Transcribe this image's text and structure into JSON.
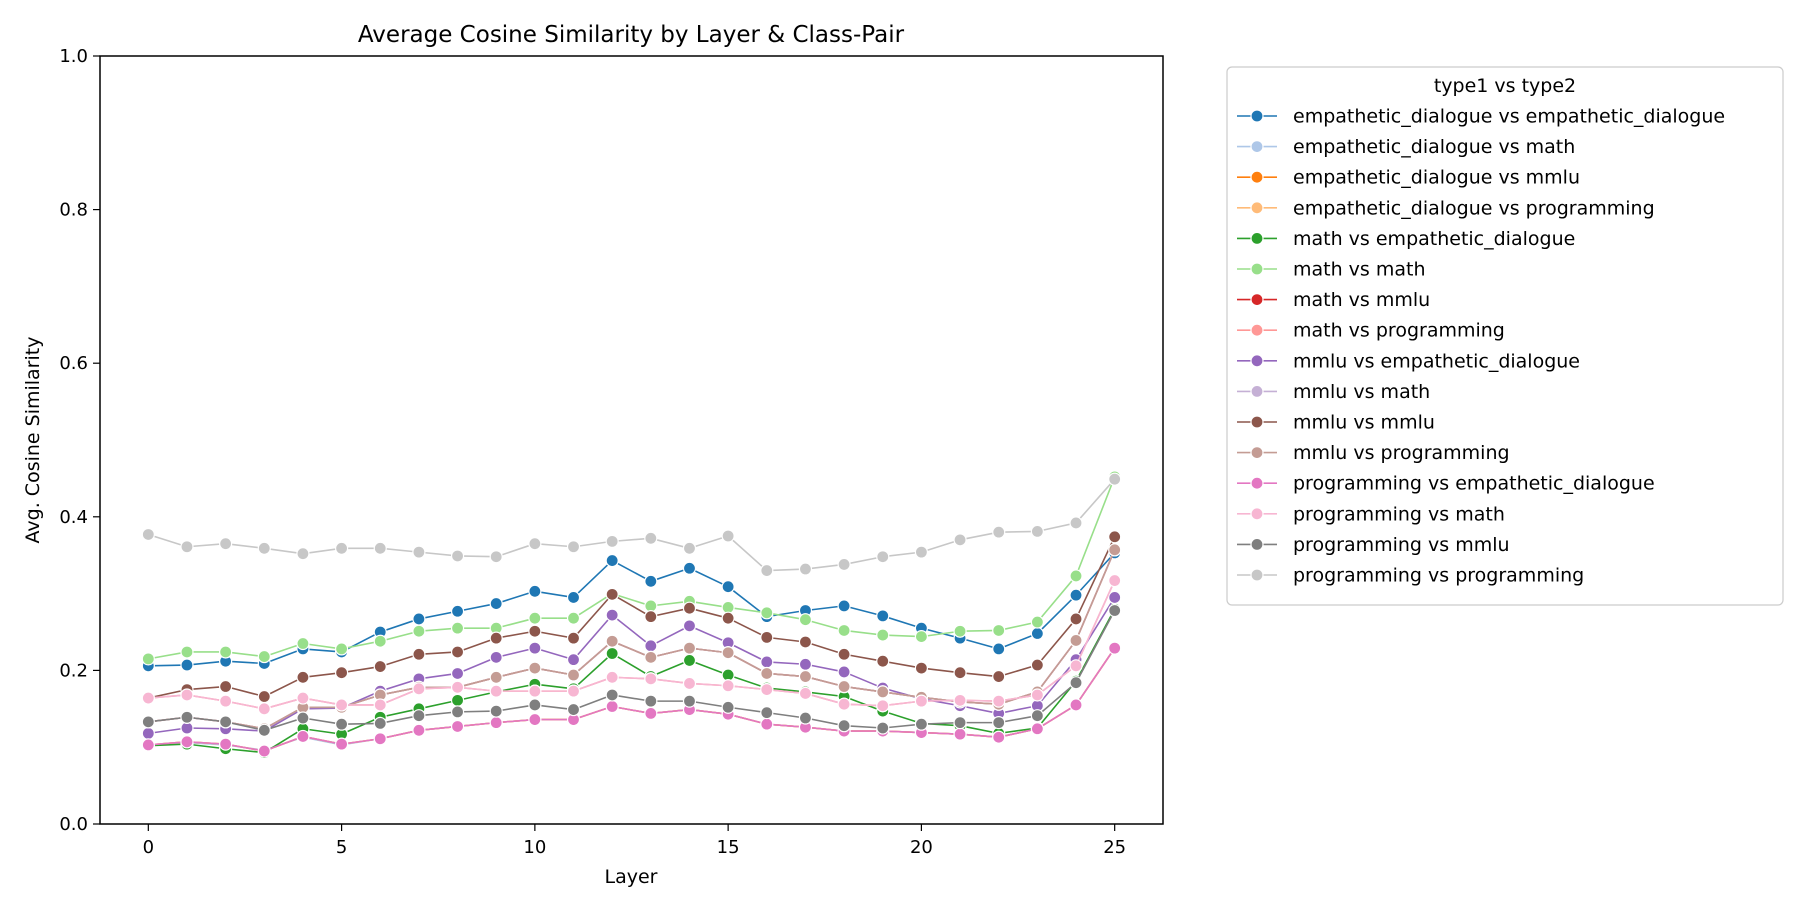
{
  "chart_data": {
    "type": "line",
    "title": "Average Cosine Similarity by Layer & Class-Pair",
    "xlabel": "Layer",
    "ylabel": "Avg. Cosine Similarity",
    "xlim": [
      -1.25,
      26.25
    ],
    "ylim": [
      0,
      1
    ],
    "xticks": [
      "0",
      "5",
      "10",
      "15",
      "20",
      "25"
    ],
    "yticks": [
      "0.0",
      "0.2",
      "0.4",
      "0.6",
      "0.8",
      "1.0"
    ],
    "grid": false,
    "legend": {
      "title": "type1 vs type2",
      "placement": "outside-right"
    },
    "x": [
      0,
      1,
      2,
      3,
      4,
      5,
      6,
      7,
      8,
      9,
      10,
      11,
      12,
      13,
      14,
      15,
      16,
      17,
      18,
      19,
      20,
      21,
      22,
      23,
      24,
      25
    ],
    "series": [
      {
        "name": "empathetic_dialogue vs empathetic_dialogue",
        "color": "#1f77b4",
        "values": [
          0.206,
          0.207,
          0.212,
          0.209,
          0.228,
          0.224,
          0.25,
          0.267,
          0.277,
          0.287,
          0.303,
          0.295,
          0.343,
          0.316,
          0.333,
          0.309,
          0.27,
          0.278,
          0.284,
          0.271,
          0.255,
          0.242,
          0.228,
          0.248,
          0.298,
          0.353
        ]
      },
      {
        "name": "empathetic_dialogue vs math",
        "color": "#aec7e8",
        "values": [
          0.102,
          0.106,
          0.103,
          0.096,
          0.113,
          0.103,
          0.111,
          0.122,
          0.127,
          0.132,
          0.136,
          0.136,
          0.153,
          0.144,
          0.149,
          0.143,
          0.13,
          0.126,
          0.121,
          0.121,
          0.119,
          0.117,
          0.113,
          0.124,
          0.155,
          0.229
        ]
      },
      {
        "name": "empathetic_dialogue vs mmlu",
        "color": "#ff7f0e",
        "values": [
          0.103,
          0.107,
          0.104,
          0.095,
          0.114,
          0.104,
          0.111,
          0.122,
          0.127,
          0.132,
          0.136,
          0.136,
          0.153,
          0.144,
          0.149,
          0.143,
          0.13,
          0.126,
          0.121,
          0.121,
          0.119,
          0.117,
          0.113,
          0.124,
          0.155,
          0.229
        ]
      },
      {
        "name": "empathetic_dialogue vs programming",
        "color": "#ffbb78",
        "values": [
          0.103,
          0.107,
          0.104,
          0.095,
          0.114,
          0.104,
          0.111,
          0.122,
          0.127,
          0.132,
          0.136,
          0.136,
          0.153,
          0.144,
          0.149,
          0.143,
          0.13,
          0.126,
          0.121,
          0.121,
          0.119,
          0.117,
          0.113,
          0.124,
          0.155,
          0.229
        ]
      },
      {
        "name": "math vs empathetic_dialogue",
        "color": "#2ca02c",
        "values": [
          0.102,
          0.104,
          0.098,
          0.093,
          0.124,
          0.117,
          0.139,
          0.15,
          0.161,
          0.172,
          0.182,
          0.176,
          0.222,
          0.192,
          0.213,
          0.194,
          0.177,
          0.172,
          0.166,
          0.147,
          0.131,
          0.128,
          0.118,
          0.125,
          0.186,
          0.28
        ]
      },
      {
        "name": "math vs math",
        "color": "#98df8a",
        "values": [
          0.215,
          0.224,
          0.224,
          0.218,
          0.235,
          0.228,
          0.238,
          0.251,
          0.255,
          0.255,
          0.268,
          0.268,
          0.3,
          0.284,
          0.29,
          0.282,
          0.275,
          0.266,
          0.252,
          0.246,
          0.244,
          0.251,
          0.252,
          0.263,
          0.323,
          0.452
        ]
      },
      {
        "name": "math vs mmlu",
        "color": "#d62728",
        "values": [
          0.133,
          0.139,
          0.133,
          0.124,
          0.152,
          0.152,
          0.168,
          0.178,
          0.178,
          0.191,
          0.203,
          0.194,
          0.238,
          0.217,
          0.229,
          0.223,
          0.196,
          0.192,
          0.179,
          0.172,
          0.165,
          0.159,
          0.156,
          0.172,
          0.239,
          0.357
        ]
      },
      {
        "name": "math vs programming",
        "color": "#ff9896",
        "values": [
          0.164,
          0.168,
          0.16,
          0.15,
          0.164,
          0.155,
          0.155,
          0.176,
          0.178,
          0.173,
          0.173,
          0.173,
          0.191,
          0.189,
          0.183,
          0.18,
          0.175,
          0.17,
          0.156,
          0.154,
          0.16,
          0.161,
          0.16,
          0.168,
          0.206,
          0.317
        ]
      },
      {
        "name": "mmlu vs empathetic_dialogue",
        "color": "#9467bd",
        "values": [
          0.118,
          0.125,
          0.124,
          0.121,
          0.15,
          0.151,
          0.173,
          0.189,
          0.196,
          0.217,
          0.229,
          0.214,
          0.272,
          0.232,
          0.258,
          0.236,
          0.211,
          0.208,
          0.198,
          0.177,
          0.163,
          0.154,
          0.144,
          0.154,
          0.214,
          0.295
        ]
      },
      {
        "name": "mmlu vs math",
        "color": "#c5b0d5",
        "values": [
          0.133,
          0.139,
          0.133,
          0.124,
          0.152,
          0.152,
          0.168,
          0.178,
          0.178,
          0.191,
          0.203,
          0.194,
          0.238,
          0.217,
          0.229,
          0.223,
          0.196,
          0.192,
          0.179,
          0.172,
          0.165,
          0.159,
          0.156,
          0.172,
          0.239,
          0.357
        ]
      },
      {
        "name": "mmlu vs mmlu",
        "color": "#8c564b",
        "values": [
          0.164,
          0.175,
          0.179,
          0.166,
          0.191,
          0.197,
          0.205,
          0.221,
          0.224,
          0.242,
          0.251,
          0.242,
          0.299,
          0.27,
          0.281,
          0.268,
          0.243,
          0.237,
          0.221,
          0.212,
          0.203,
          0.197,
          0.192,
          0.207,
          0.267,
          0.374
        ]
      },
      {
        "name": "mmlu vs programming",
        "color": "#c49c94",
        "values": [
          0.133,
          0.139,
          0.133,
          0.124,
          0.152,
          0.152,
          0.168,
          0.178,
          0.178,
          0.191,
          0.203,
          0.194,
          0.238,
          0.217,
          0.229,
          0.223,
          0.196,
          0.192,
          0.179,
          0.172,
          0.165,
          0.159,
          0.156,
          0.172,
          0.239,
          0.357
        ]
      },
      {
        "name": "programming vs empathetic_dialogue",
        "color": "#e377c2",
        "values": [
          0.103,
          0.107,
          0.104,
          0.095,
          0.114,
          0.104,
          0.111,
          0.122,
          0.127,
          0.132,
          0.136,
          0.136,
          0.153,
          0.144,
          0.149,
          0.143,
          0.13,
          0.126,
          0.121,
          0.121,
          0.119,
          0.117,
          0.113,
          0.124,
          0.155,
          0.229
        ]
      },
      {
        "name": "programming vs math",
        "color": "#f7b6d2",
        "values": [
          0.164,
          0.168,
          0.16,
          0.15,
          0.164,
          0.155,
          0.155,
          0.176,
          0.178,
          0.173,
          0.173,
          0.173,
          0.191,
          0.189,
          0.183,
          0.18,
          0.175,
          0.17,
          0.156,
          0.154,
          0.16,
          0.161,
          0.16,
          0.168,
          0.206,
          0.317
        ]
      },
      {
        "name": "programming vs mmlu",
        "color": "#7f7f7f",
        "values": [
          0.133,
          0.139,
          0.133,
          0.122,
          0.138,
          0.13,
          0.131,
          0.141,
          0.146,
          0.147,
          0.155,
          0.149,
          0.168,
          0.16,
          0.16,
          0.152,
          0.145,
          0.138,
          0.128,
          0.125,
          0.13,
          0.132,
          0.132,
          0.141,
          0.184,
          0.278
        ]
      },
      {
        "name": "programming vs programming",
        "color": "#c7c7c7",
        "values": [
          0.377,
          0.361,
          0.365,
          0.359,
          0.352,
          0.359,
          0.359,
          0.354,
          0.349,
          0.348,
          0.365,
          0.361,
          0.368,
          0.372,
          0.359,
          0.375,
          0.33,
          0.332,
          0.338,
          0.348,
          0.354,
          0.37,
          0.38,
          0.381,
          0.392,
          0.449
        ]
      }
    ]
  }
}
